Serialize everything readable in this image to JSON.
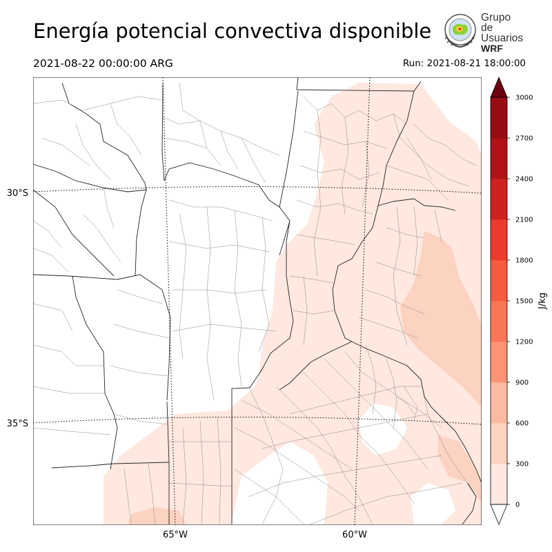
{
  "header": {
    "title": "Energía potencial convectiva disponible",
    "valid_time": "2021-08-22 00:00:00 ARG",
    "run_time": "Run: 2021-08-21 18:00:00"
  },
  "logo": {
    "line1": "Grupo de",
    "line2": "Usuarios",
    "line3": "WRF"
  },
  "map": {
    "lat_labels": [
      "30°S",
      "35°S"
    ],
    "lon_labels": [
      "65°W",
      "60°W"
    ],
    "fill_colors": [
      "#fee8df",
      "#fcd2c0"
    ]
  },
  "colorbar": {
    "unit": "J/kg",
    "ticks": [
      "0",
      "300",
      "600",
      "900",
      "1200",
      "1500",
      "1800",
      "2100",
      "2400",
      "2700",
      "3000"
    ],
    "colors": [
      "#fee8df",
      "#fcd2c0",
      "#fcbba1",
      "#fc9474",
      "#fb7656",
      "#f85a40",
      "#ee3a2c",
      "#d0201f",
      "#b11117",
      "#990c13"
    ],
    "extend_color": "#6c000e"
  }
}
